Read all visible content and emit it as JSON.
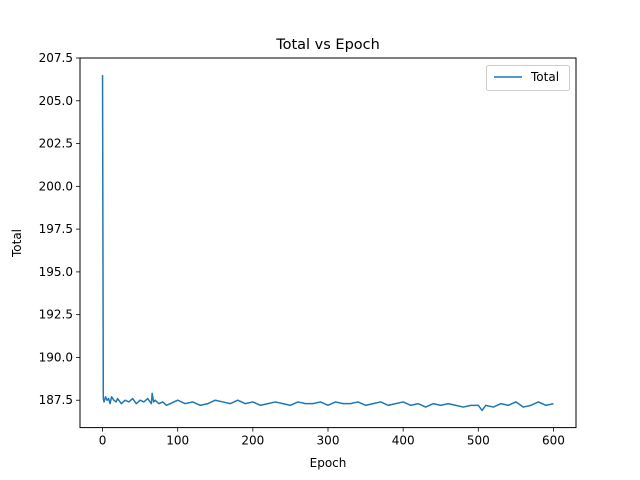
{
  "chart_data": {
    "type": "line",
    "title": "Total vs Epoch",
    "xlabel": "Epoch",
    "ylabel": "Total",
    "xlim": [
      -30,
      630
    ],
    "ylim": [
      185.9,
      207.5
    ],
    "xticks": [
      0,
      100,
      200,
      300,
      400,
      500,
      600
    ],
    "xtick_labels": [
      "0",
      "100",
      "200",
      "300",
      "400",
      "500",
      "600"
    ],
    "yticks": [
      187.5,
      190.0,
      192.5,
      195.0,
      197.5,
      200.0,
      202.5,
      205.0,
      207.5
    ],
    "ytick_labels": [
      "187.5",
      "190.0",
      "192.5",
      "195.0",
      "197.5",
      "200.0",
      "202.5",
      "205.0",
      "207.5"
    ],
    "grid": false,
    "legend_position": "top-right",
    "series": [
      {
        "name": "Total",
        "color": "#1f77b4",
        "x": [
          0,
          1,
          2,
          4,
          6,
          8,
          10,
          12,
          15,
          18,
          20,
          25,
          30,
          35,
          40,
          45,
          50,
          55,
          60,
          65,
          66,
          68,
          70,
          75,
          80,
          85,
          90,
          95,
          100,
          110,
          120,
          130,
          140,
          150,
          160,
          170,
          180,
          190,
          200,
          210,
          220,
          230,
          240,
          250,
          260,
          270,
          280,
          290,
          300,
          310,
          320,
          330,
          340,
          350,
          360,
          370,
          380,
          390,
          400,
          410,
          420,
          430,
          440,
          450,
          460,
          470,
          480,
          490,
          500,
          505,
          510,
          520,
          530,
          540,
          550,
          560,
          570,
          580,
          590,
          600
        ],
        "y": [
          206.5,
          187.6,
          187.4,
          187.7,
          187.5,
          187.6,
          187.3,
          187.7,
          187.5,
          187.4,
          187.6,
          187.3,
          187.5,
          187.4,
          187.6,
          187.3,
          187.5,
          187.4,
          187.6,
          187.3,
          187.9,
          187.4,
          187.5,
          187.3,
          187.4,
          187.2,
          187.3,
          187.4,
          187.5,
          187.3,
          187.4,
          187.2,
          187.3,
          187.5,
          187.4,
          187.3,
          187.5,
          187.3,
          187.4,
          187.2,
          187.3,
          187.4,
          187.3,
          187.2,
          187.4,
          187.3,
          187.3,
          187.4,
          187.2,
          187.4,
          187.3,
          187.3,
          187.4,
          187.2,
          187.3,
          187.4,
          187.2,
          187.3,
          187.4,
          187.2,
          187.3,
          187.1,
          187.3,
          187.2,
          187.3,
          187.2,
          187.1,
          187.2,
          187.2,
          186.9,
          187.2,
          187.1,
          187.3,
          187.2,
          187.4,
          187.1,
          187.2,
          187.4,
          187.2,
          187.3
        ]
      }
    ]
  }
}
